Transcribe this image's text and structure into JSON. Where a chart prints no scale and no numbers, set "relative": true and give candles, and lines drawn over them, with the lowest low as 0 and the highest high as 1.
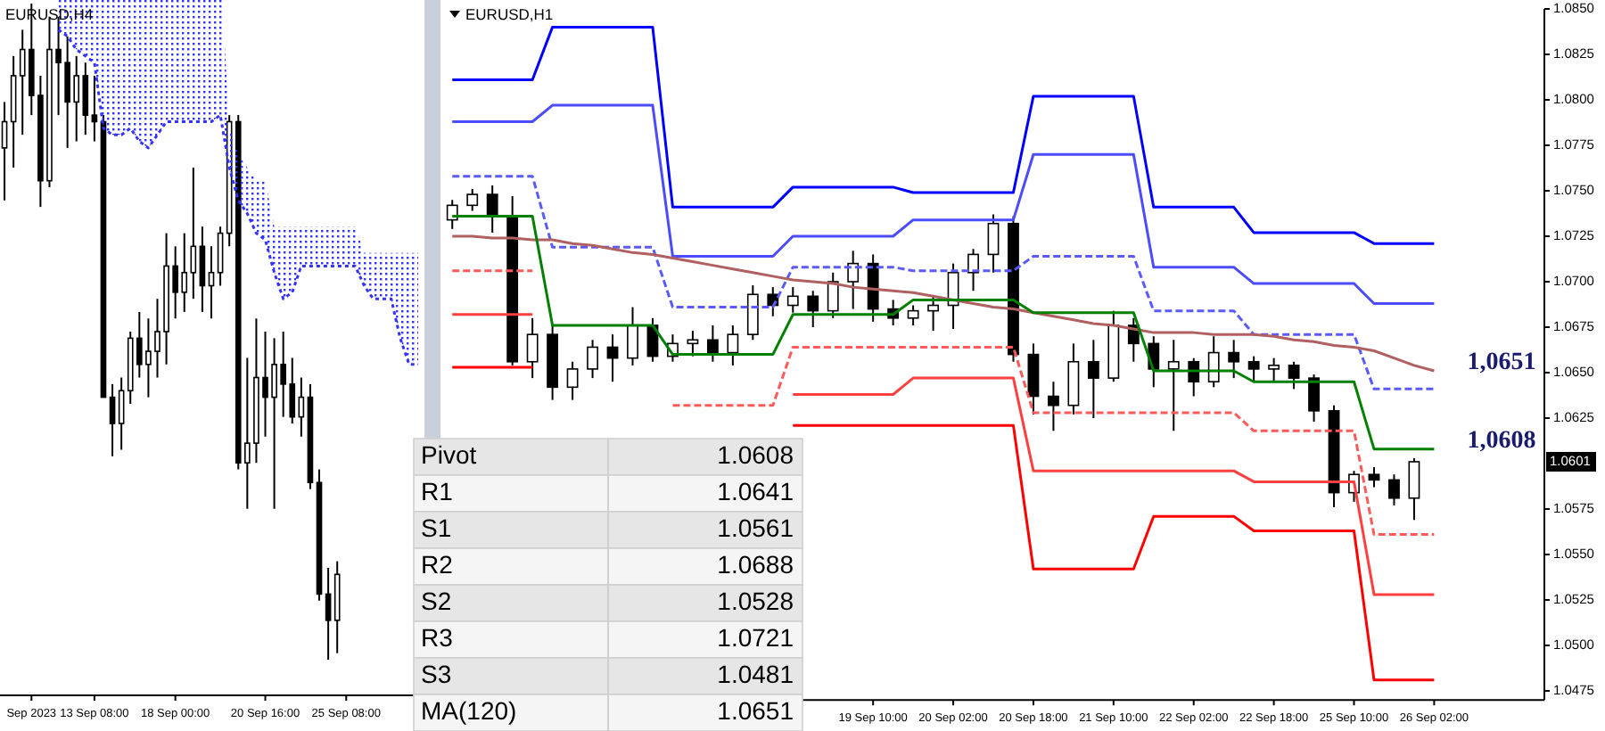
{
  "chart_data": [
    {
      "type": "candlestick",
      "title": "EURUSD,H4",
      "relative": true,
      "tick_labels": "x",
      "color": "#000000",
      "categories": [
        null,
        null,
        null,
        "Sep 2023",
        null,
        null,
        null,
        null,
        null,
        null,
        "13 Sep 08:00",
        null,
        null,
        null,
        null,
        null,
        null,
        null,
        null,
        "18 Sep 00:00",
        null,
        null,
        null,
        null,
        null,
        null,
        null,
        null,
        null,
        "20 Sep 16:00",
        null,
        null,
        null,
        null,
        null,
        null,
        null,
        null,
        "25 Sep 08:00",
        null,
        null,
        null,
        null,
        null,
        null,
        null,
        null
      ],
      "ohlc": [
        [
          0.78,
          0.85,
          0.7,
          0.82
        ],
        [
          0.82,
          0.92,
          0.75,
          0.89
        ],
        [
          0.89,
          0.96,
          0.8,
          0.93
        ],
        [
          0.93,
          1.0,
          0.83,
          0.86
        ],
        [
          0.86,
          0.89,
          0.69,
          0.73
        ],
        [
          0.73,
          0.98,
          0.72,
          0.93
        ],
        [
          0.93,
          0.98,
          0.83,
          0.91
        ],
        [
          0.91,
          0.95,
          0.78,
          0.85
        ],
        [
          0.85,
          0.92,
          0.79,
          0.89
        ],
        [
          0.89,
          0.91,
          0.8,
          0.83
        ],
        [
          0.83,
          0.89,
          0.79,
          0.82
        ],
        [
          0.82,
          0.83,
          0.4,
          0.4
        ],
        [
          0.4,
          0.42,
          0.31,
          0.36
        ],
        [
          0.36,
          0.43,
          0.32,
          0.41
        ],
        [
          0.41,
          0.5,
          0.39,
          0.49
        ],
        [
          0.49,
          0.53,
          0.43,
          0.45
        ],
        [
          0.45,
          0.52,
          0.4,
          0.47
        ],
        [
          0.47,
          0.55,
          0.43,
          0.5
        ],
        [
          0.5,
          0.65,
          0.45,
          0.6
        ],
        [
          0.6,
          0.63,
          0.52,
          0.56
        ],
        [
          0.56,
          0.65,
          0.53,
          0.59
        ],
        [
          0.59,
          0.75,
          0.55,
          0.63
        ],
        [
          0.63,
          0.66,
          0.53,
          0.57
        ],
        [
          0.57,
          0.63,
          0.52,
          0.59
        ],
        [
          0.59,
          0.66,
          0.57,
          0.65
        ],
        [
          0.65,
          0.83,
          0.63,
          0.82
        ],
        [
          0.82,
          0.83,
          0.29,
          0.3
        ],
        [
          0.3,
          0.46,
          0.23,
          0.33
        ],
        [
          0.33,
          0.52,
          0.3,
          0.43
        ],
        [
          0.43,
          0.5,
          0.34,
          0.4
        ],
        [
          0.4,
          0.49,
          0.23,
          0.45
        ],
        [
          0.45,
          0.5,
          0.37,
          0.42
        ],
        [
          0.42,
          0.46,
          0.36,
          0.37
        ],
        [
          0.37,
          0.43,
          0.34,
          0.4
        ],
        [
          0.4,
          0.42,
          0.26,
          0.27
        ],
        [
          0.27,
          0.29,
          0.09,
          0.1
        ],
        [
          0.1,
          0.14,
          0.0,
          0.06
        ],
        [
          0.06,
          0.15,
          0.01,
          0.13
        ],
        null,
        null,
        null,
        null,
        null,
        null,
        null,
        null,
        null
      ],
      "series": [
        {
          "type": "line",
          "color": "#3333ff",
          "line_style": "dotted",
          "values": [
            null,
            null,
            null,
            null,
            null,
            null,
            0.96,
            0.95,
            0.93,
            0.92,
            0.91,
            0.81,
            0.8,
            0.8,
            0.81,
            0.79,
            0.78,
            0.8,
            0.82,
            0.82,
            0.82,
            0.82,
            0.82,
            0.82,
            0.83,
            0.75,
            0.7,
            0.68,
            0.65,
            0.64,
            0.59,
            0.55,
            0.56,
            0.6,
            0.6,
            0.6,
            0.6,
            0.6,
            0.6,
            0.6,
            0.57,
            0.55,
            0.55,
            0.55,
            0.49,
            0.45,
            0.45
          ],
          "upper": [
            null,
            null,
            null,
            null,
            null,
            null,
            1.06,
            1.06,
            1.06,
            1.06,
            1.06,
            1.06,
            1.06,
            1.06,
            1.06,
            1.06,
            1.06,
            1.06,
            1.06,
            1.06,
            1.06,
            1.06,
            1.06,
            1.06,
            1.06,
            0.81,
            0.77,
            0.75,
            0.73,
            0.73,
            0.66,
            0.66,
            0.66,
            0.66,
            0.66,
            0.66,
            0.66,
            0.66,
            0.66,
            0.66,
            0.62,
            0.62,
            0.62,
            0.62,
            0.62,
            0.62,
            0.62
          ],
          "lower": [
            null,
            null,
            null,
            null,
            null,
            null,
            0.96,
            0.95,
            0.93,
            0.92,
            0.91,
            0.81,
            0.8,
            0.8,
            0.81,
            0.79,
            0.78,
            0.8,
            0.82,
            0.82,
            0.82,
            0.82,
            0.82,
            0.82,
            0.83,
            0.75,
            0.7,
            0.68,
            0.65,
            0.64,
            0.59,
            0.55,
            0.56,
            0.6,
            0.6,
            0.6,
            0.6,
            0.6,
            0.6,
            0.6,
            0.57,
            0.55,
            0.55,
            0.55,
            0.49,
            0.45,
            0.45
          ]
        }
      ]
    },
    {
      "type": "candlestick",
      "title": "EURUSD,H1",
      "color": "#000000",
      "ylim": [
        1.047,
        1.085
      ],
      "yticks": [
        1.0475,
        {
          "value": 1.05,
          "label": "1.0500"
        },
        1.0525,
        {
          "value": 1.055,
          "label": "1.0550"
        },
        1.0575,
        1.0625,
        {
          "value": 1.065,
          "label": "1.0650"
        },
        1.0675,
        {
          "value": 1.07,
          "label": "1.0700"
        },
        1.0725,
        {
          "value": 1.075,
          "label": "1.0750"
        },
        1.0775,
        {
          "value": 1.08,
          "label": "1.0800"
        },
        1.0825,
        {
          "value": 1.085,
          "label": "1.0850"
        }
      ],
      "categories": [
        null,
        null,
        null,
        null,
        null,
        null,
        null,
        null,
        null,
        null,
        null,
        null,
        null,
        null,
        null,
        null,
        null,
        null,
        null,
        null,
        null,
        "19 Sep 10:00",
        null,
        null,
        null,
        "20 Sep 02:00",
        null,
        null,
        null,
        "20 Sep 18:00",
        null,
        null,
        null,
        "21 Sep 10:00",
        null,
        null,
        null,
        "22 Sep 02:00",
        null,
        null,
        null,
        "22 Sep 18:00",
        null,
        null,
        null,
        "25 Sep 10:00",
        null,
        null,
        null,
        "26 Sep 02:00",
        null,
        null,
        null,
        null,
        null
      ],
      "ohlc": [
        [
          1.0734,
          1.0745,
          1.0729,
          1.0742
        ],
        [
          1.0742,
          1.0751,
          1.0739,
          1.0748
        ],
        [
          1.0748,
          1.0753,
          1.0727,
          1.0736
        ],
        [
          1.0736,
          1.0747,
          1.0654,
          1.0656
        ],
        [
          1.0656,
          1.068,
          1.0647,
          1.0671
        ],
        [
          1.0671,
          1.0676,
          1.0635,
          1.0642
        ],
        [
          1.0642,
          1.0656,
          1.0635,
          1.0652
        ],
        [
          1.0652,
          1.0668,
          1.0647,
          1.0664
        ],
        [
          1.0664,
          1.0671,
          1.0645,
          1.0658
        ],
        [
          1.0658,
          1.0686,
          1.0654,
          1.0676
        ],
        [
          1.0676,
          1.068,
          1.0656,
          1.0659
        ],
        [
          1.0659,
          1.0671,
          1.0656,
          1.0666
        ],
        [
          1.0666,
          1.0673,
          1.0659,
          1.0668
        ],
        [
          1.0668,
          1.0676,
          1.0656,
          1.0661
        ],
        [
          1.0661,
          1.0676,
          1.0654,
          1.0671
        ],
        [
          1.0671,
          1.0698,
          1.0668,
          1.0693
        ],
        [
          1.0693,
          1.0697,
          1.0681,
          1.0687
        ],
        [
          1.0687,
          1.0697,
          1.0683,
          1.0692
        ],
        [
          1.0692,
          1.0695,
          1.0675,
          1.0684
        ],
        [
          1.0684,
          1.0705,
          1.068,
          1.07
        ],
        [
          1.07,
          1.0717,
          1.0685,
          1.071
        ],
        [
          1.071,
          1.0715,
          1.0678,
          1.0685
        ],
        [
          1.0685,
          1.069,
          1.0676,
          1.068
        ],
        [
          1.068,
          1.0687,
          1.0676,
          1.0684
        ],
        [
          1.0684,
          1.0692,
          1.0673,
          1.0687
        ],
        [
          1.0687,
          1.071,
          1.0674,
          1.0705
        ],
        [
          1.0705,
          1.0718,
          1.0695,
          1.0715
        ],
        [
          1.0715,
          1.0737,
          1.0705,
          1.0732
        ],
        [
          1.0732,
          1.0736,
          1.0656,
          1.066
        ],
        [
          1.066,
          1.0666,
          1.0627,
          1.0637
        ],
        [
          1.0637,
          1.0645,
          1.0618,
          1.0632
        ],
        [
          1.0632,
          1.0666,
          1.0627,
          1.0656
        ],
        [
          1.0656,
          1.0668,
          1.0625,
          1.0647
        ],
        [
          1.0647,
          1.0684,
          1.0645,
          1.0676
        ],
        [
          1.0676,
          1.068,
          1.0656,
          1.0666
        ],
        [
          1.0666,
          1.067,
          1.0642,
          1.0652
        ],
        [
          1.0652,
          1.0668,
          1.0618,
          1.0656
        ],
        [
          1.0656,
          1.0658,
          1.0637,
          1.0645
        ],
        [
          1.0645,
          1.067,
          1.0642,
          1.0661
        ],
        [
          1.0661,
          1.0668,
          1.0647,
          1.0656
        ],
        [
          1.0656,
          1.0659,
          1.0645,
          1.0652
        ],
        [
          1.0652,
          1.0658,
          1.0645,
          1.0654
        ],
        [
          1.0654,
          1.0656,
          1.0641,
          1.0647
        ],
        [
          1.0647,
          1.0649,
          1.0623,
          1.0629
        ],
        [
          1.0629,
          1.0632,
          1.0576,
          1.0584
        ],
        [
          1.0584,
          1.0596,
          1.0579,
          1.0594
        ],
        [
          1.0594,
          1.0598,
          1.0587,
          1.0591
        ],
        [
          1.0591,
          1.0594,
          1.0577,
          1.0581
        ],
        [
          1.0581,
          1.0603,
          1.0569,
          1.0601
        ],
        null,
        null,
        null,
        null,
        null,
        null
      ],
      "value_labels": [
        null,
        null,
        null,
        null,
        null,
        null,
        null,
        null,
        null,
        null,
        null,
        null,
        null,
        null,
        null,
        null,
        null,
        null,
        null,
        null,
        null,
        null,
        null,
        null,
        null,
        null,
        null,
        null,
        null,
        null,
        null,
        null,
        null,
        null,
        null,
        null,
        null,
        null,
        null,
        null,
        null,
        null,
        null,
        null,
        null,
        null,
        null,
        null,
        "1.0601",
        null,
        null,
        null,
        null,
        null,
        null
      ],
      "series": [
        {
          "type": "line",
          "color": "#0000ff",
          "values": [
            1.0811,
            1.0811,
            1.0811,
            1.0811,
            1.0811,
            1.084,
            1.084,
            1.084,
            1.084,
            1.084,
            1.084,
            1.0741,
            1.0741,
            1.0741,
            1.0741,
            1.0741,
            1.0741,
            1.0752,
            1.0752,
            1.0752,
            1.0752,
            1.0752,
            1.0752,
            1.0749,
            1.0749,
            1.0749,
            1.0749,
            1.0749,
            1.0749,
            1.0802,
            1.0802,
            1.0802,
            1.0802,
            1.0802,
            1.0802,
            1.0741,
            1.0741,
            1.0741,
            1.0741,
            1.0741,
            1.0727,
            1.0727,
            1.0727,
            1.0727,
            1.0727,
            1.0727,
            1.0721,
            1.0721,
            1.0721,
            1.0721,
            null,
            null,
            null,
            null,
            null
          ]
        },
        {
          "type": "line",
          "color": "#4b4bff",
          "values": [
            1.0788,
            1.0788,
            1.0788,
            1.0788,
            1.0788,
            1.0797,
            1.0797,
            1.0797,
            1.0797,
            1.0797,
            1.0797,
            1.0714,
            1.0714,
            1.0714,
            1.0714,
            1.0714,
            1.0714,
            1.0725,
            1.0725,
            1.0725,
            1.0725,
            1.0725,
            1.0725,
            1.0734,
            1.0734,
            1.0734,
            1.0734,
            1.0734,
            1.0734,
            1.077,
            1.077,
            1.077,
            1.077,
            1.077,
            1.077,
            1.0708,
            1.0708,
            1.0708,
            1.0708,
            1.0708,
            1.0699,
            1.0699,
            1.0699,
            1.0699,
            1.0699,
            1.0699,
            1.0688,
            1.0688,
            1.0688,
            1.0688,
            null,
            null,
            null,
            null,
            null
          ]
        },
        {
          "type": "line",
          "color": "#5a5aff",
          "line_style": "dashed",
          "values": [
            1.0758,
            1.0758,
            1.0758,
            1.0758,
            1.0758,
            1.0719,
            1.0719,
            1.0719,
            1.0719,
            1.0719,
            1.0719,
            1.0686,
            1.0686,
            1.0686,
            1.0686,
            1.0686,
            1.0686,
            1.0708,
            1.0708,
            1.0708,
            1.0708,
            1.0708,
            1.0708,
            1.0706,
            1.0706,
            1.0706,
            1.0706,
            1.0706,
            1.0706,
            1.0714,
            1.0714,
            1.0714,
            1.0714,
            1.0714,
            1.0714,
            1.0684,
            1.0684,
            1.0684,
            1.0684,
            1.0684,
            1.0671,
            1.0671,
            1.0671,
            1.0671,
            1.0671,
            1.0671,
            1.0641,
            1.0641,
            1.0641,
            1.0641,
            null,
            null,
            null,
            null,
            null
          ]
        },
        {
          "type": "line",
          "color": "#b06060",
          "values": [
            1.0725,
            1.0725,
            1.0724,
            1.0724,
            1.0723,
            1.0723,
            1.0721,
            1.072,
            1.0718,
            1.0716,
            1.0715,
            1.0713,
            1.0711,
            1.0709,
            1.0707,
            1.0705,
            1.0703,
            1.0701,
            1.07,
            1.0699,
            1.0697,
            1.0696,
            1.0695,
            1.0694,
            1.0692,
            1.069,
            1.0688,
            1.0686,
            1.0685,
            1.0683,
            1.0681,
            1.0679,
            1.0677,
            1.0676,
            1.0674,
            1.0672,
            1.0672,
            1.0672,
            1.0671,
            1.0671,
            1.0671,
            1.067,
            1.0668,
            1.0667,
            1.0665,
            1.0664,
            1.0662,
            1.0658,
            1.0654,
            1.0651,
            null,
            null,
            null,
            null,
            null
          ],
          "value_labels": [
            null,
            null,
            null,
            null,
            null,
            null,
            null,
            null,
            null,
            null,
            null,
            null,
            null,
            null,
            null,
            null,
            null,
            null,
            null,
            null,
            null,
            null,
            null,
            null,
            null,
            null,
            null,
            null,
            null,
            null,
            null,
            null,
            null,
            null,
            null,
            null,
            null,
            null,
            null,
            null,
            null,
            null,
            null,
            null,
            null,
            null,
            null,
            null,
            null,
            "1,0651",
            null,
            null,
            null,
            null,
            null
          ]
        },
        {
          "type": "line",
          "color": "#008000",
          "values": [
            1.0736,
            1.0736,
            1.0736,
            1.0736,
            1.0736,
            1.0676,
            1.0676,
            1.0676,
            1.0676,
            1.0676,
            1.0676,
            1.066,
            1.066,
            1.066,
            1.066,
            1.066,
            1.066,
            1.0682,
            1.0682,
            1.0682,
            1.0682,
            1.0682,
            1.0682,
            1.069,
            1.069,
            1.069,
            1.069,
            1.069,
            1.069,
            1.0683,
            1.0683,
            1.0683,
            1.0683,
            1.0683,
            1.0683,
            1.0651,
            1.0651,
            1.0651,
            1.0651,
            1.0651,
            1.0645,
            1.0645,
            1.0645,
            1.0645,
            1.0645,
            1.0645,
            1.0608,
            1.0608,
            1.0608,
            1.0608,
            null,
            null,
            null,
            null,
            null
          ],
          "value_labels": [
            null,
            null,
            null,
            null,
            null,
            null,
            null,
            null,
            null,
            null,
            null,
            null,
            null,
            null,
            null,
            null,
            null,
            null,
            null,
            null,
            null,
            null,
            null,
            null,
            null,
            null,
            null,
            null,
            null,
            null,
            null,
            null,
            null,
            null,
            null,
            null,
            null,
            null,
            null,
            null,
            null,
            null,
            null,
            null,
            null,
            null,
            null,
            null,
            null,
            "1,0608",
            null,
            null,
            null,
            null,
            null
          ]
        },
        {
          "type": "line",
          "color": "#ff5a5a",
          "line_style": "dashed",
          "values": [
            1.0706,
            1.0706,
            1.0706,
            1.0706,
            1.0706,
            null,
            null,
            null,
            null,
            null,
            null,
            1.0632,
            1.0632,
            1.0632,
            1.0632,
            1.0632,
            1.0632,
            1.0664,
            1.0664,
            1.0664,
            1.0664,
            1.0664,
            1.0664,
            1.0664,
            1.0664,
            1.0664,
            1.0664,
            1.0664,
            1.0664,
            1.0628,
            1.0628,
            1.0628,
            1.0628,
            1.0628,
            1.0628,
            1.0628,
            1.0628,
            1.0628,
            1.0628,
            1.0628,
            1.0618,
            1.0618,
            1.0618,
            1.0618,
            1.0618,
            1.0618,
            1.0561,
            1.0561,
            1.0561,
            1.0561,
            null,
            null,
            null,
            null,
            null
          ]
        },
        {
          "type": "line",
          "color": "#ff4040",
          "values": [
            1.0682,
            1.0682,
            1.0682,
            1.0682,
            1.0682,
            null,
            null,
            null,
            null,
            null,
            null,
            null,
            null,
            null,
            null,
            null,
            null,
            1.0638,
            1.0638,
            1.0638,
            1.0638,
            1.0638,
            1.0638,
            1.0647,
            1.0647,
            1.0647,
            1.0647,
            1.0647,
            1.0647,
            1.0596,
            1.0596,
            1.0596,
            1.0596,
            1.0596,
            1.0596,
            1.0596,
            1.0596,
            1.0596,
            1.0596,
            1.0596,
            1.059,
            1.059,
            1.059,
            1.059,
            1.059,
            1.059,
            1.0528,
            1.0528,
            1.0528,
            1.0528,
            null,
            null,
            null,
            null,
            null
          ]
        },
        {
          "type": "line",
          "color": "#ff0000",
          "values": [
            1.0653,
            1.0653,
            1.0653,
            1.0653,
            1.0653,
            null,
            null,
            null,
            null,
            null,
            null,
            null,
            null,
            null,
            null,
            null,
            null,
            1.0621,
            1.0621,
            1.0621,
            1.0621,
            1.0621,
            1.0621,
            1.0621,
            1.0621,
            1.0621,
            1.0621,
            1.0621,
            1.0621,
            1.0542,
            1.0542,
            1.0542,
            1.0542,
            1.0542,
            1.0542,
            1.0571,
            1.0571,
            1.0571,
            1.0571,
            1.0571,
            1.0563,
            1.0563,
            1.0563,
            1.0563,
            1.0563,
            1.0563,
            1.0481,
            1.0481,
            1.0481,
            1.0481,
            null,
            null,
            null,
            null,
            null
          ]
        }
      ],
      "tick_labels": true
    },
    {
      "type": "other",
      "categories": [
        "Pivot",
        "R1",
        "S1",
        "R2",
        "S2",
        "R3",
        "S3",
        "MA(120)"
      ],
      "values": [
        1.0608,
        1.0641,
        1.0561,
        1.0688,
        1.0528,
        1.0721,
        1.0481,
        1.0651
      ],
      "data_labels": true
    }
  ]
}
